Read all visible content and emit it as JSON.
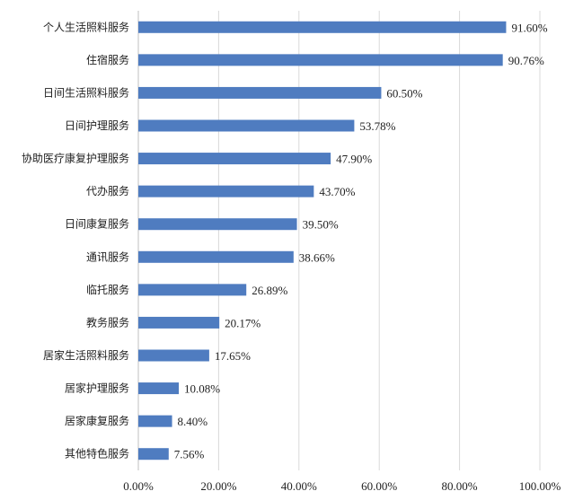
{
  "chart_data": {
    "type": "bar",
    "orientation": "horizontal",
    "categories": [
      "个人生活照料服务",
      "住宿服务",
      "日间生活照料服务",
      "日间护理服务",
      "协助医疗康复护理服务",
      "代办服务",
      "日间康复服务",
      "通讯服务",
      "临托服务",
      "教务服务",
      "居家生活照料服务",
      "居家护理服务",
      "居家康复服务",
      "其他特色服务"
    ],
    "values": [
      91.6,
      90.76,
      60.5,
      53.78,
      47.9,
      43.7,
      39.5,
      38.66,
      26.89,
      20.17,
      17.65,
      10.08,
      8.4,
      7.56
    ],
    "value_labels": [
      "91.60%",
      "90.76%",
      "60.50%",
      "53.78%",
      "47.90%",
      "43.70%",
      "39.50%",
      "38.66%",
      "26.89%",
      "20.17%",
      "17.65%",
      "10.08%",
      "8.40%",
      "7.56%"
    ],
    "x_ticks": [
      0,
      20,
      40,
      60,
      80,
      100
    ],
    "x_tick_labels": [
      "0.00%",
      "20.00%",
      "40.00%",
      "60.00%",
      "80.00%",
      "100.00%"
    ],
    "xlim": [
      0,
      100
    ],
    "grid": true,
    "bar_color": "#4f7cc0"
  }
}
